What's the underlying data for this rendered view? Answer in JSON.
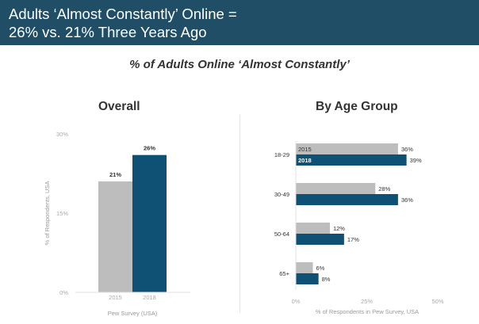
{
  "banner": {
    "line1": "Adults ‘Almost Constantly’ Online =",
    "line2": "26% vs. 21% Three Years Ago"
  },
  "subtitle": "% of Adults Online ‘Almost Constantly’",
  "colors": {
    "banner": "#1f4e66",
    "series_2015": "#bdbdbd",
    "series_2018": "#0e5174"
  },
  "chart_data": [
    {
      "type": "bar",
      "title": "Overall",
      "categories": [
        "2015",
        "2018"
      ],
      "values": [
        21,
        26
      ],
      "value_labels": [
        "21%",
        "26%"
      ],
      "ylabel": "% of Respondents, USA",
      "xlabel": "Pew Survey (USA)",
      "ylim": [
        0,
        30
      ],
      "y_ticks": [
        0,
        15,
        30
      ],
      "y_tick_labels": [
        "0%",
        "15%",
        "30%"
      ],
      "grid": false
    },
    {
      "type": "bar",
      "orientation": "horizontal",
      "title": "By Age Group",
      "categories": [
        "18-29",
        "30-49",
        "50-64",
        "65+"
      ],
      "series": [
        {
          "name": "2015",
          "values": [
            36,
            28,
            12,
            6
          ],
          "value_labels": [
            "36%",
            "28%",
            "12%",
            "6%"
          ]
        },
        {
          "name": "2018",
          "values": [
            39,
            36,
            17,
            8
          ],
          "value_labels": [
            "39%",
            "36%",
            "17%",
            "8%"
          ]
        }
      ],
      "xlabel": "% of Respondents in Pew Survey, USA",
      "xlim": [
        0,
        50
      ],
      "x_ticks": [
        0,
        25,
        50
      ],
      "x_tick_labels": [
        "0%",
        "25%",
        "50%"
      ],
      "legend": "inline inside first category bars",
      "grid": false
    }
  ]
}
